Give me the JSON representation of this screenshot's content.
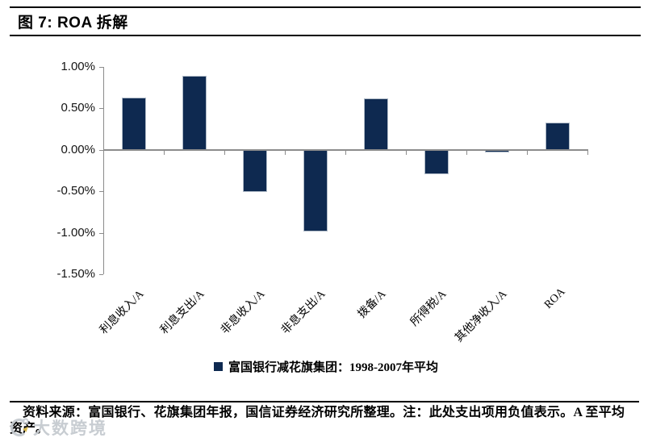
{
  "page": {
    "title": "图 7: ROA 拆解"
  },
  "chart_data": {
    "type": "bar",
    "title": "图 7: ROA 拆解",
    "categories": [
      "利息收入/A",
      "利息支出/A",
      "非息收入/A",
      "非息支出/A",
      "拨备/A",
      "所得税/A",
      "其他净收入/A",
      "ROA"
    ],
    "values": [
      0.63,
      0.89,
      -0.51,
      -0.98,
      0.62,
      -0.29,
      -0.03,
      0.33
    ],
    "unit": "%",
    "xlabel": "",
    "ylabel": "",
    "ylim": [
      -1.5,
      1.0
    ],
    "yticks": [
      {
        "label": "1.00%",
        "value": 1.0
      },
      {
        "label": "0.50%",
        "value": 0.5
      },
      {
        "label": "0.00%",
        "value": 0.0
      },
      {
        "label": "-0.50%",
        "value": -0.5
      },
      {
        "label": "-1.00%",
        "value": -1.0
      },
      {
        "label": "-1.50%",
        "value": -1.5
      }
    ],
    "grid": false,
    "legend_position": "bottom",
    "legend": [
      {
        "marker": "square",
        "label": "富国银行减花旗集团：1998-2007年平均",
        "color": "#0e2950"
      }
    ],
    "bar_color": "#0e2950",
    "bar_border_color": "#aeb9c6",
    "axis_color": "#8c8c8c"
  },
  "footer": {
    "note": "资料来源：富国银行、花旗集团年报，国信证券经济研究所整理。注：此处支出项用负值表示。A 至平均资产。"
  },
  "watermark": {
    "label": "大数跨境",
    "logo": "circle-logo-icon",
    "color": "#c6cbd0"
  }
}
